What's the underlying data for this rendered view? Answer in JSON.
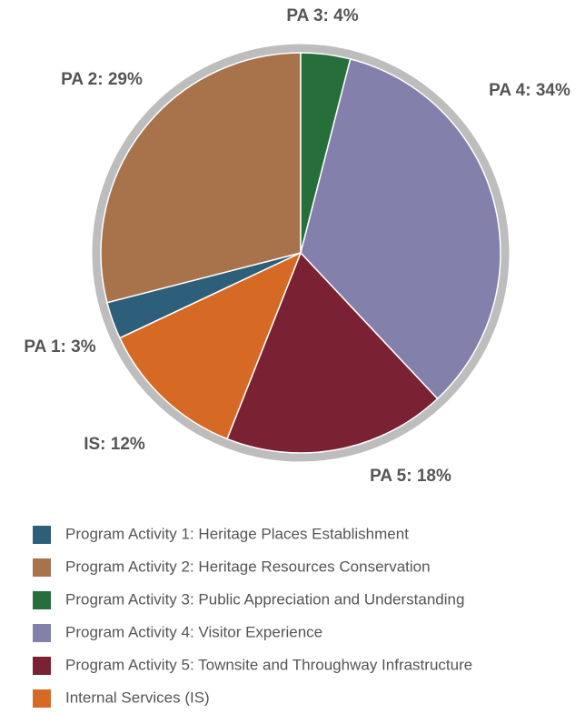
{
  "chart_data": {
    "type": "pie",
    "categories": [
      "Program Activity 1: Heritage Places Establishment",
      "Program Activity 2: Heritage Resources Conservation",
      "Program Activity 3: Public Appreciation and Understanding",
      "Program Activity 4: Visitor Experience",
      "Program Activity 5: Townsite and Throughway Infrastructure",
      "Internal Services (IS)"
    ],
    "values": [
      3,
      29,
      4,
      34,
      18,
      12
    ],
    "value_labels": [
      "PA 1: 3%",
      "PA 2: 29%",
      "PA 3: 4%",
      "PA 4: 34%",
      "PA 5: 18%",
      "IS: 12%"
    ],
    "colors": [
      "#2e5f7a",
      "#a8734b",
      "#266f3b",
      "#8380ab",
      "#7a2233",
      "#d66a24"
    ]
  }
}
